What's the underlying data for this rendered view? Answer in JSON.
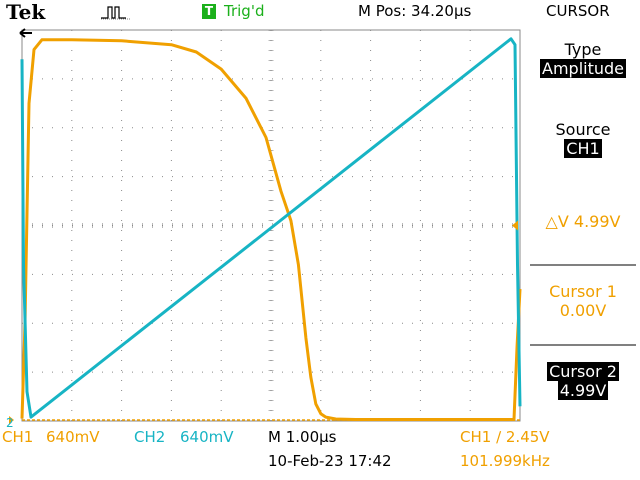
{
  "header": {
    "brand": "Tek",
    "trigger_badge": "T",
    "trigger_status": "Trig'd",
    "m_pos": "M Pos: 34.20µs",
    "menu_title": "CURSOR"
  },
  "side_menu": {
    "type_label": "Type",
    "type_value": "Amplitude",
    "source_label": "Source",
    "source_value": "CH1",
    "delta_v": "△V 4.99V",
    "cursor1_label": "Cursor 1",
    "cursor1_value": "0.00V",
    "cursor2_label": "Cursor 2",
    "cursor2_value": "4.99V"
  },
  "footer": {
    "ch1": "CH1",
    "ch1_scale": "640mV",
    "ch2": "CH2",
    "ch2_scale": "640mV",
    "timebase": "M 1.00µs",
    "date": "10-Feb-23 17:42",
    "trigger": "CH1 ∕ 2.45V",
    "frequency": "101.999kHz",
    "ch2_marker": "2"
  },
  "colors": {
    "ch1": "#f0a000",
    "ch2": "#17b4c4",
    "grid": "#8a8a8a",
    "accent_green": "#1bb01b"
  },
  "chart_data": {
    "type": "line",
    "x_unit": "div",
    "y_unit": "div",
    "xlim": [
      0,
      10
    ],
    "ylim": [
      0,
      8
    ],
    "grid": true,
    "series": [
      {
        "name": "CH1",
        "x": [
          0,
          0.06,
          0.14,
          0.24,
          0.4,
          1,
          2,
          3,
          3.5,
          4.0,
          4.5,
          4.9,
          5.2,
          5.4,
          5.55,
          5.7,
          5.8,
          5.9,
          6.0,
          6.1,
          6.3,
          6.7,
          8,
          9.5,
          9.88,
          9.94,
          10.0
        ],
        "y": [
          0.05,
          2.0,
          6.5,
          7.6,
          7.8,
          7.8,
          7.78,
          7.7,
          7.55,
          7.2,
          6.6,
          5.8,
          4.7,
          4.1,
          3.2,
          1.7,
          0.9,
          0.35,
          0.15,
          0.08,
          0.04,
          0.03,
          0.03,
          0.03,
          0.03,
          1.5,
          2.7
        ]
      },
      {
        "name": "CH2",
        "x": [
          0,
          0.03,
          0.1,
          0.18,
          9.82,
          9.9,
          9.95,
          10.0
        ],
        "y": [
          7.4,
          3.2,
          0.6,
          0.08,
          7.82,
          7.7,
          3.2,
          0.3
        ]
      }
    ]
  }
}
